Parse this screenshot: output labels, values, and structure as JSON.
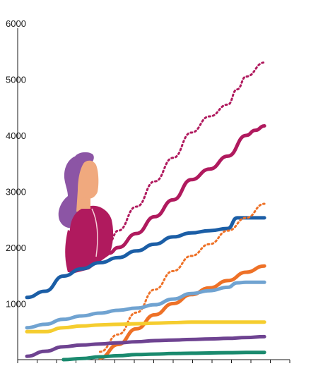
{
  "chart_data": {
    "type": "line",
    "ylim": [
      0,
      6000
    ],
    "xlim": [
      0,
      14
    ],
    "y_ticks": [
      "1000",
      "2000",
      "3000",
      "4000",
      "5000",
      "6000"
    ],
    "grid": false,
    "legend": "none",
    "series": [
      {
        "color": "#1b5ea6",
        "style": "solid",
        "x": [
          0,
          1,
          2,
          3,
          4,
          5,
          6,
          7,
          8,
          9,
          10,
          11,
          11.5,
          12,
          13
        ],
        "y": [
          1110,
          1220,
          1490,
          1620,
          1730,
          1820,
          1940,
          2060,
          2190,
          2260,
          2300,
          2340,
          2530,
          2530,
          2530
        ]
      },
      {
        "color": "#b01a5e",
        "style": "solid",
        "x": [
          4.5,
          5,
          6,
          7,
          8,
          9,
          10,
          11,
          12,
          12.5,
          13
        ],
        "y": [
          1900,
          2000,
          2250,
          2550,
          2850,
          3210,
          3400,
          3630,
          4000,
          4090,
          4170
        ]
      },
      {
        "color": "#b01a5e",
        "style": "dotted",
        "x": [
          4.5,
          5,
          6,
          7,
          8,
          9,
          10,
          11,
          11.5,
          12,
          13
        ],
        "y": [
          2100,
          2300,
          2730,
          3180,
          3600,
          4050,
          4340,
          4550,
          4820,
          5050,
          5300
        ]
      },
      {
        "color": "#ee7127",
        "style": "dotted",
        "x": [
          4,
          5,
          6,
          7,
          8,
          9,
          10,
          11,
          12,
          13
        ],
        "y": [
          140,
          450,
          840,
          1250,
          1580,
          1850,
          2060,
          2300,
          2530,
          2780
        ]
      },
      {
        "color": "#ee7127",
        "style": "solid",
        "x": [
          4,
          5,
          6,
          7,
          8,
          9,
          10,
          11,
          12,
          13
        ],
        "y": [
          30,
          270,
          550,
          800,
          1000,
          1160,
          1280,
          1410,
          1560,
          1670
        ]
      },
      {
        "color": "#70a3d1",
        "style": "solid",
        "x": [
          0,
          1,
          2,
          3,
          4,
          5,
          6,
          7,
          8,
          9,
          10,
          11,
          11.5,
          12,
          13
        ],
        "y": [
          570,
          630,
          720,
          780,
          830,
          880,
          920,
          980,
          1080,
          1180,
          1230,
          1290,
          1370,
          1380,
          1380
        ]
      },
      {
        "color": "#f5cd2f",
        "style": "solid",
        "x": [
          0,
          1,
          2,
          3,
          4,
          5,
          6,
          7,
          8,
          9,
          10,
          11,
          12,
          13
        ],
        "y": [
          500,
          500,
          570,
          600,
          620,
          630,
          640,
          650,
          660,
          670,
          670,
          670,
          670,
          670
        ]
      },
      {
        "color": "#6e4391",
        "style": "solid",
        "x": [
          0,
          1,
          2,
          3,
          4,
          5,
          6,
          7,
          8,
          9,
          10,
          11,
          12,
          13
        ],
        "y": [
          60,
          150,
          230,
          260,
          280,
          300,
          320,
          340,
          350,
          360,
          370,
          380,
          395,
          410
        ]
      },
      {
        "color": "#1a8a6e",
        "style": "solid",
        "x": [
          2,
          3,
          4,
          5,
          6,
          7,
          8,
          9,
          10,
          11,
          12,
          13
        ],
        "y": [
          0,
          20,
          50,
          70,
          90,
          100,
          110,
          115,
          120,
          125,
          128,
          130
        ]
      }
    ]
  },
  "illustration": {
    "icon": "woman-looking-up-icon",
    "hair_color": "#8c55a5",
    "skin_color": "#f0a97e",
    "top_color": "#b01a5e"
  }
}
